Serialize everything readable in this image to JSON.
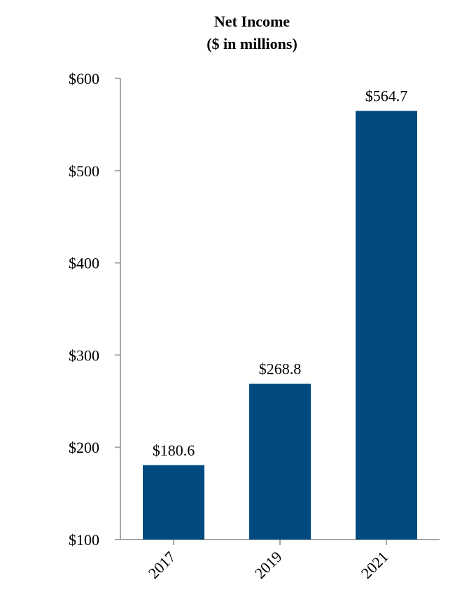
{
  "chart_data": {
    "type": "bar",
    "title": "Net Income",
    "subtitle": "($ in millions)",
    "categories": [
      "2017",
      "2019",
      "2021"
    ],
    "values": [
      180.6,
      268.8,
      564.7
    ],
    "data_labels": [
      "$180.6",
      "$268.8",
      "$564.7"
    ],
    "yticks": [
      100,
      200,
      300,
      400,
      500,
      600
    ],
    "ytick_labels": [
      "$100",
      "$200",
      "$300",
      "$400",
      "$500",
      "$600"
    ],
    "ylim": [
      100,
      600
    ],
    "grid": false,
    "bar_color": "#004a7f",
    "axis_color": "#a6a6a6"
  }
}
